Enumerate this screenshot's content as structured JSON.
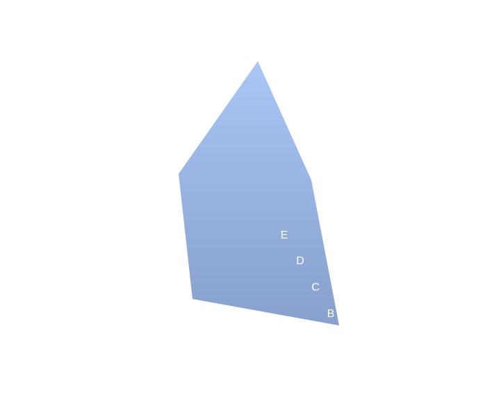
{
  "diagram": {
    "fill_top_color": "#a9c6f6",
    "fill_bottom_color": "#87a0cc",
    "label_color": "#ffffff",
    "labels": [
      "E",
      "D",
      "C",
      "B"
    ]
  }
}
